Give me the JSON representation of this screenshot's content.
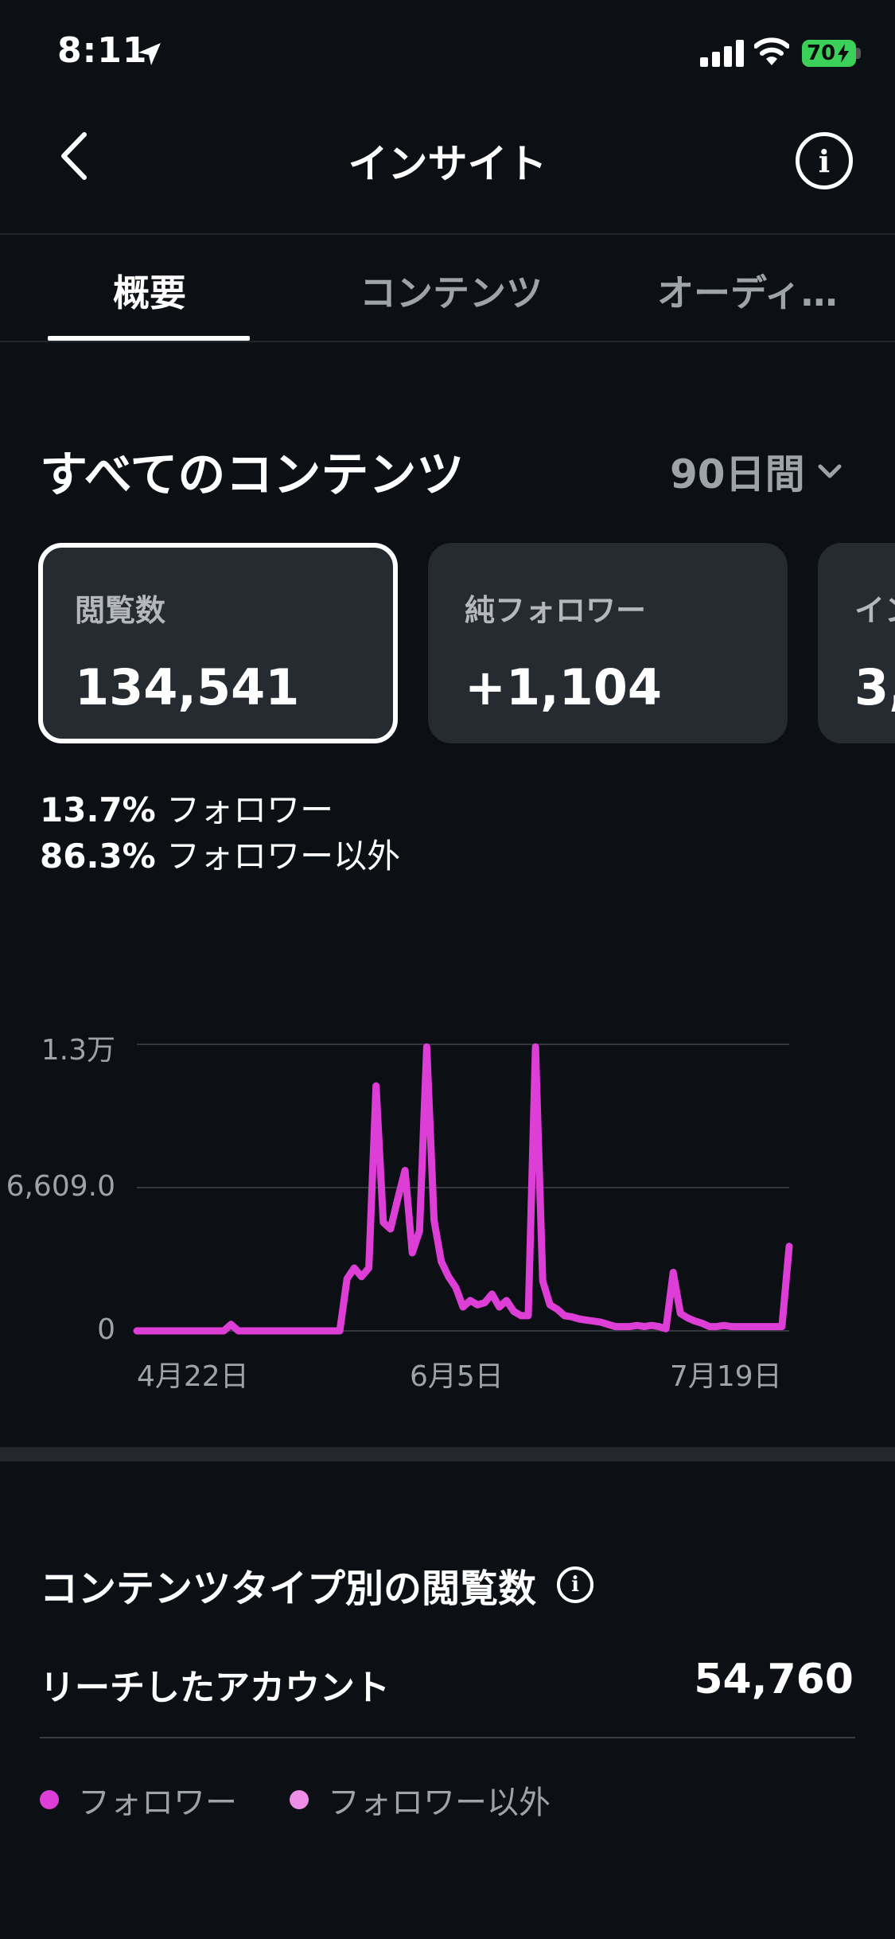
{
  "status_bar": {
    "time": "8:11",
    "battery": "70"
  },
  "header": {
    "title": "インサイト"
  },
  "tabs": [
    {
      "label": "概要"
    },
    {
      "label": "コンテンツ"
    },
    {
      "label": "オーディ…"
    }
  ],
  "section": {
    "title": "すべてのコンテンツ",
    "period": "90日間"
  },
  "metrics": [
    {
      "label": "閲覧数",
      "value": "134,541"
    },
    {
      "label": "純フォロワー",
      "value": "+1,104"
    },
    {
      "label": "イン",
      "value": "3,"
    }
  ],
  "breakdown": [
    {
      "pct": "13.7%",
      "label": "フォロワー"
    },
    {
      "pct": "86.3%",
      "label": "フォロワー以外"
    }
  ],
  "chart_data": {
    "type": "line",
    "y_tick_labels": [
      "1.3万",
      "6,609.0",
      "0"
    ],
    "x_tick_labels": [
      "4月22日",
      "6月5日",
      "7月19日"
    ],
    "ylim": [
      0,
      13218
    ],
    "series": [
      {
        "color": "#dd3ed6",
        "values": [
          0,
          0,
          0,
          0,
          0,
          0,
          0,
          0,
          0,
          0,
          0,
          0,
          0,
          300,
          0,
          0,
          0,
          0,
          0,
          0,
          0,
          0,
          0,
          0,
          0,
          0,
          0,
          0,
          0,
          2400,
          2900,
          2500,
          2900,
          11300,
          5000,
          4700,
          6100,
          7400,
          3600,
          4600,
          13100,
          5100,
          3200,
          2500,
          2000,
          1100,
          1400,
          1200,
          1300,
          1700,
          1100,
          1400,
          900,
          700,
          700,
          13100,
          2300,
          1200,
          1000,
          700,
          650,
          550,
          500,
          450,
          400,
          300,
          200,
          200,
          200,
          250,
          200,
          250,
          200,
          100,
          2700,
          800,
          600,
          450,
          350,
          200,
          200,
          250,
          200,
          200,
          200,
          200,
          200,
          200,
          200,
          200,
          3900
        ]
      }
    ]
  },
  "content_type": {
    "title": "コンテンツタイプ別の閲覧数",
    "reach_label": "リーチしたアカウント",
    "reach_value": "54,760",
    "legend": [
      {
        "label": "フォロワー",
        "color": "#dd3ed6"
      },
      {
        "label": "フォロワー以外",
        "color": "#ee8ee6"
      }
    ]
  }
}
